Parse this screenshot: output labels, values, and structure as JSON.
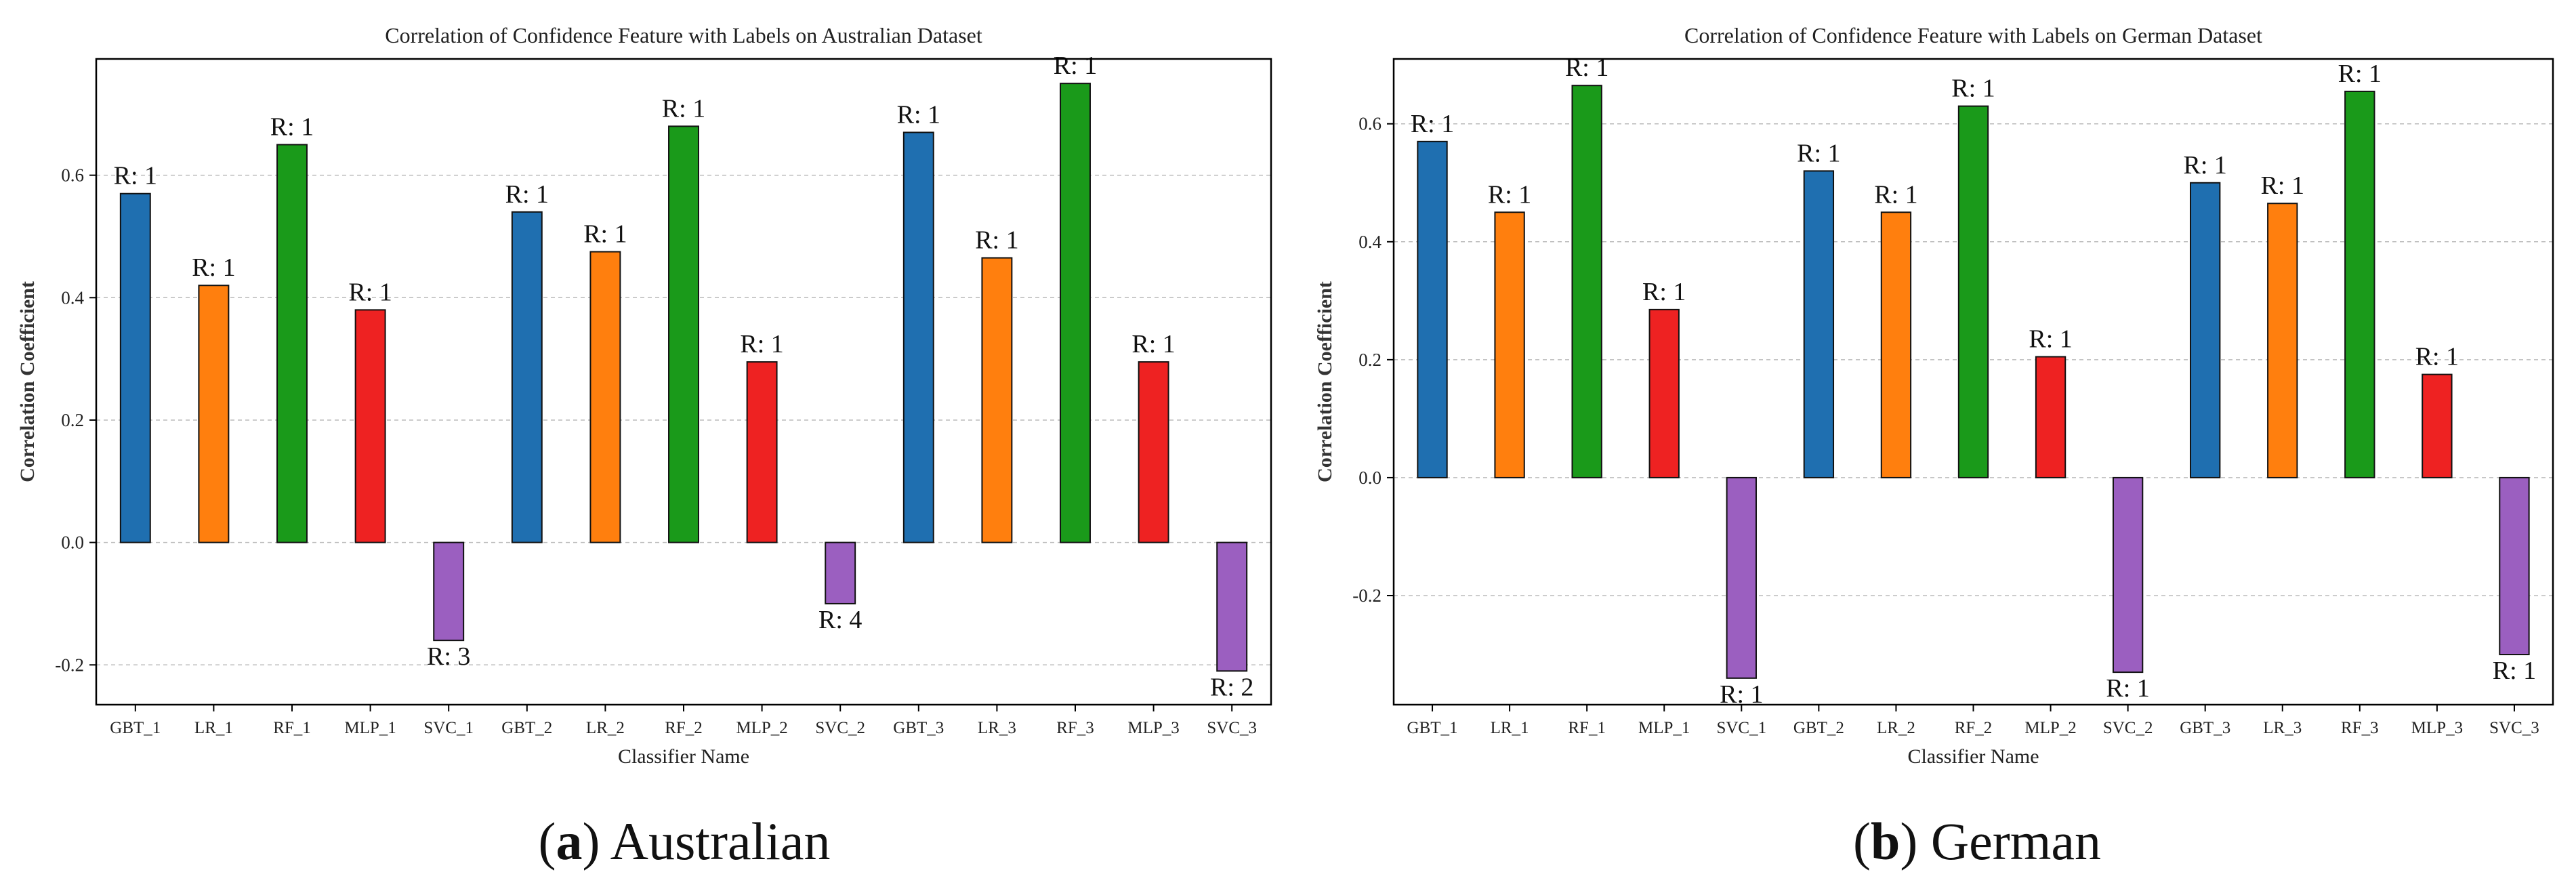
{
  "chart_data": [
    {
      "type": "bar",
      "title": "Correlation of Confidence Feature with Labels on Australian Dataset",
      "xlabel": "Classifier Name",
      "ylabel": "Correlation Coefficient",
      "ylim": [
        -0.265,
        0.79
      ],
      "yticks": [
        -0.2,
        0.0,
        0.2,
        0.4,
        0.6
      ],
      "grid": "horizontal-dashed",
      "categories": [
        "GBT_1",
        "LR_1",
        "RF_1",
        "MLP_1",
        "SVC_1",
        "GBT_2",
        "LR_2",
        "RF_2",
        "MLP_2",
        "SVC_2",
        "GBT_3",
        "LR_3",
        "RF_3",
        "MLP_3",
        "SVC_3"
      ],
      "values": [
        0.57,
        0.42,
        0.65,
        0.38,
        -0.16,
        0.54,
        0.475,
        0.68,
        0.295,
        -0.1,
        0.67,
        0.465,
        0.75,
        0.295,
        -0.21
      ],
      "annotations": [
        "R: 1",
        "R: 1",
        "R: 1",
        "R: 1",
        "R: 3",
        "R: 1",
        "R: 1",
        "R: 1",
        "R: 1",
        "R: 4",
        "R: 1",
        "R: 1",
        "R: 1",
        "R: 1",
        "R: 2"
      ],
      "colors": [
        "#1f6fb0",
        "#ff7f0e",
        "#1a9a1a",
        "#ee2222",
        "#9b5fc0"
      ],
      "caption_letter": "a",
      "caption_text": " Australian"
    },
    {
      "type": "bar",
      "title": "Correlation of Confidence Feature with Labels on German Dataset",
      "xlabel": "Classifier Name",
      "ylabel": "Correlation Coefficient",
      "ylim": [
        -0.385,
        0.71
      ],
      "yticks": [
        -0.2,
        0.0,
        0.2,
        0.4,
        0.6
      ],
      "grid": "horizontal-dashed",
      "categories": [
        "GBT_1",
        "LR_1",
        "RF_1",
        "MLP_1",
        "SVC_1",
        "GBT_2",
        "LR_2",
        "RF_2",
        "MLP_2",
        "SVC_2",
        "GBT_3",
        "LR_3",
        "RF_3",
        "MLP_3",
        "SVC_3"
      ],
      "values": [
        0.57,
        0.45,
        0.665,
        0.285,
        -0.34,
        0.52,
        0.45,
        0.63,
        0.205,
        -0.33,
        0.5,
        0.465,
        0.655,
        0.175,
        -0.3
      ],
      "annotations": [
        "R: 1",
        "R: 1",
        "R: 1",
        "R: 1",
        "R: 1",
        "R: 1",
        "R: 1",
        "R: 1",
        "R: 1",
        "R: 1",
        "R: 1",
        "R: 1",
        "R: 1",
        "R: 1",
        "R: 1"
      ],
      "colors": [
        "#1f6fb0",
        "#ff7f0e",
        "#1a9a1a",
        "#ee2222",
        "#9b5fc0"
      ],
      "caption_letter": "b",
      "caption_text": " German"
    }
  ]
}
